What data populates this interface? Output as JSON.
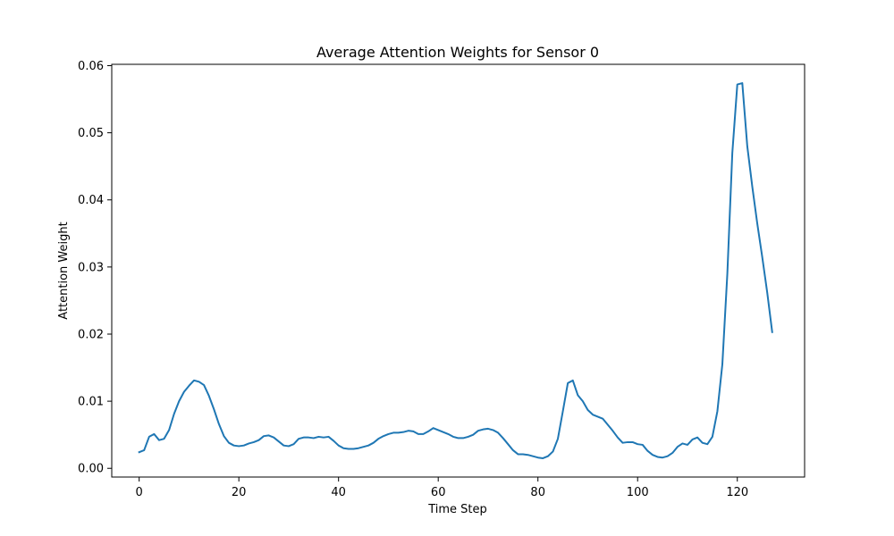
{
  "chart_data": {
    "type": "line",
    "title": "Average Attention Weights for Sensor 0",
    "xlabel": "Time Step",
    "ylabel": "Attention Weight",
    "xlim": [
      -5.5,
      133.5
    ],
    "ylim": [
      -0.0013,
      0.0602
    ],
    "x_ticks": [
      0,
      20,
      40,
      60,
      80,
      100,
      120
    ],
    "x_tick_labels": [
      "0",
      "20",
      "40",
      "60",
      "80",
      "100",
      "120"
    ],
    "y_ticks": [
      0.0,
      0.01,
      0.02,
      0.03,
      0.04,
      0.05,
      0.06
    ],
    "y_tick_labels": [
      "0.00",
      "0.01",
      "0.02",
      "0.03",
      "0.04",
      "0.05",
      "0.06"
    ],
    "grid": false,
    "legend": "none",
    "color": "#1f77b4",
    "series": [
      {
        "x": [
          0,
          1,
          2,
          3,
          4,
          5,
          6,
          7,
          8,
          9,
          10,
          11,
          12,
          13,
          14,
          15,
          16,
          17,
          18,
          19,
          20,
          21,
          22,
          23,
          24,
          25,
          26,
          27,
          28,
          29,
          30,
          31,
          32,
          33,
          34,
          35,
          36,
          37,
          38,
          39,
          40,
          41,
          42,
          43,
          44,
          45,
          46,
          47,
          48,
          49,
          50,
          51,
          52,
          53,
          54,
          55,
          56,
          57,
          58,
          59,
          60,
          61,
          62,
          63,
          64,
          65,
          66,
          67,
          68,
          69,
          70,
          71,
          72,
          73,
          74,
          75,
          76,
          77,
          78,
          79,
          80,
          81,
          82,
          83,
          84,
          85,
          86,
          87,
          88,
          89,
          90,
          91,
          92,
          93,
          94,
          95,
          96,
          97,
          98,
          99,
          100,
          101,
          102,
          103,
          104,
          105,
          106,
          107,
          108,
          109,
          110,
          111,
          112,
          113,
          114,
          115,
          116,
          117,
          118,
          119,
          120,
          121,
          122,
          123,
          124,
          125,
          126,
          127
        ],
        "values": [
          0.0024,
          0.0027,
          0.0047,
          0.0051,
          0.0042,
          0.0044,
          0.0057,
          0.0081,
          0.01,
          0.0114,
          0.0123,
          0.0131,
          0.0129,
          0.0124,
          0.0108,
          0.0088,
          0.0066,
          0.0048,
          0.0038,
          0.0034,
          0.0033,
          0.0034,
          0.0037,
          0.0039,
          0.0042,
          0.0048,
          0.0049,
          0.0046,
          0.004,
          0.0034,
          0.0033,
          0.0036,
          0.0044,
          0.0046,
          0.0046,
          0.0045,
          0.0047,
          0.0046,
          0.0047,
          0.0041,
          0.0034,
          0.003,
          0.0029,
          0.0029,
          0.003,
          0.0032,
          0.0034,
          0.0038,
          0.0044,
          0.0048,
          0.0051,
          0.0053,
          0.0053,
          0.0054,
          0.0056,
          0.0055,
          0.0051,
          0.0051,
          0.0055,
          0.006,
          0.0057,
          0.0054,
          0.0051,
          0.0047,
          0.0045,
          0.0045,
          0.0047,
          0.005,
          0.0056,
          0.0058,
          0.0059,
          0.0057,
          0.0053,
          0.0045,
          0.0036,
          0.0027,
          0.0021,
          0.0021,
          0.002,
          0.0018,
          0.0016,
          0.0015,
          0.0018,
          0.0025,
          0.0044,
          0.0085,
          0.0127,
          0.0131,
          0.0109,
          0.01,
          0.0087,
          0.008,
          0.0077,
          0.0074,
          0.0065,
          0.0056,
          0.0046,
          0.0038,
          0.0039,
          0.0039,
          0.0036,
          0.0035,
          0.0026,
          0.002,
          0.0017,
          0.0016,
          0.0018,
          0.0023,
          0.0032,
          0.0037,
          0.0035,
          0.0043,
          0.0046,
          0.0038,
          0.0036,
          0.0047,
          0.0085,
          0.0155,
          0.029,
          0.047,
          0.0572,
          0.0574,
          0.048,
          0.042,
          0.0365,
          0.0315,
          0.0262,
          0.0203
        ]
      }
    ]
  }
}
